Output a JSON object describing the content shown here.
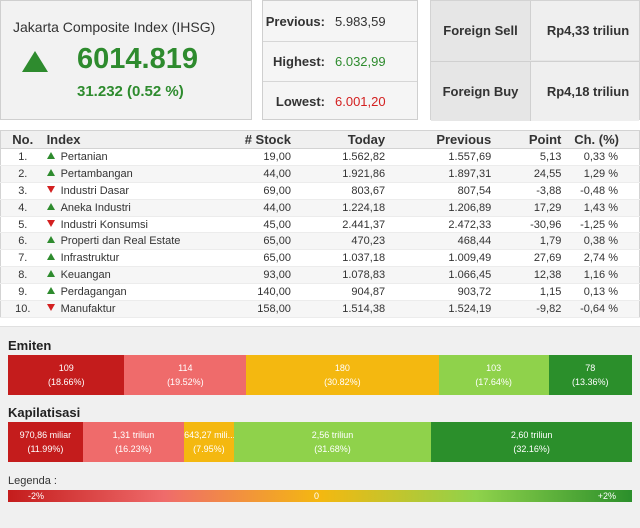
{
  "index": {
    "name": "Jakarta Composite Index (IHSG)",
    "value": "6014.819",
    "change": "31.232 (0.52 %)",
    "trend": "up",
    "color": "#2e8b2e"
  },
  "stats": {
    "previous_label": "Previous:",
    "previous_value": "5.983,59",
    "highest_label": "Highest:",
    "highest_value": "6.032,99",
    "lowest_label": "Lowest:",
    "lowest_value": "6.001,20"
  },
  "foreign": {
    "sell_label": "Foreign Sell",
    "sell_value": "Rp4,33 triliun",
    "buy_label": "Foreign Buy",
    "buy_value": "Rp4,18 triliun"
  },
  "table": {
    "headers": {
      "no": "No.",
      "index": "Index",
      "stock": "# Stock",
      "today": "Today",
      "previous": "Previous",
      "point": "Point",
      "change": "Ch. (%)"
    },
    "rows": [
      {
        "no": "1.",
        "name": "Pertanian",
        "trend": "up",
        "stock": "19,00",
        "today": "1.562,82",
        "previous": "1.557,69",
        "point": "5,13",
        "change": "0,33 %"
      },
      {
        "no": "2.",
        "name": "Pertambangan",
        "trend": "up",
        "stock": "44,00",
        "today": "1.921,86",
        "previous": "1.897,31",
        "point": "24,55",
        "change": "1,29 %"
      },
      {
        "no": "3.",
        "name": "Industri Dasar",
        "trend": "down",
        "stock": "69,00",
        "today": "803,67",
        "previous": "807,54",
        "point": "-3,88",
        "change": "-0,48 %"
      },
      {
        "no": "4.",
        "name": "Aneka Industri",
        "trend": "up",
        "stock": "44,00",
        "today": "1.224,18",
        "previous": "1.206,89",
        "point": "17,29",
        "change": "1,43 %"
      },
      {
        "no": "5.",
        "name": "Industri Konsumsi",
        "trend": "down",
        "stock": "45,00",
        "today": "2.441,37",
        "previous": "2.472,33",
        "point": "-30,96",
        "change": "-1,25 %"
      },
      {
        "no": "6.",
        "name": "Properti dan Real Estate",
        "trend": "up",
        "stock": "65,00",
        "today": "470,23",
        "previous": "468,44",
        "point": "1,79",
        "change": "0,38 %"
      },
      {
        "no": "7.",
        "name": "Infrastruktur",
        "trend": "up",
        "stock": "65,00",
        "today": "1.037,18",
        "previous": "1.009,49",
        "point": "27,69",
        "change": "2,74 %"
      },
      {
        "no": "8.",
        "name": "Keuangan",
        "trend": "up",
        "stock": "93,00",
        "today": "1.078,83",
        "previous": "1.066,45",
        "point": "12,38",
        "change": "1,16 %"
      },
      {
        "no": "9.",
        "name": "Perdagangan",
        "trend": "up",
        "stock": "140,00",
        "today": "904,87",
        "previous": "903,72",
        "point": "1,15",
        "change": "0,13 %"
      },
      {
        "no": "10.",
        "name": "Manufaktur",
        "trend": "down",
        "stock": "158,00",
        "today": "1.514,38",
        "previous": "1.524,19",
        "point": "-9,82",
        "change": "-0,64 %"
      }
    ]
  },
  "emiten": {
    "title": "Emiten",
    "segments": [
      {
        "value": "109",
        "percent": "(18.66%)",
        "share": 18.66,
        "color": "#c41c1c"
      },
      {
        "value": "114",
        "percent": "(19.52%)",
        "share": 19.52,
        "color": "#ef6b6b"
      },
      {
        "value": "180",
        "percent": "(30.82%)",
        "share": 30.82,
        "color": "#f4b810"
      },
      {
        "value": "103",
        "percent": "(17.64%)",
        "share": 17.64,
        "color": "#8fd24b"
      },
      {
        "value": "78",
        "percent": "(13.36%)",
        "share": 13.36,
        "color": "#2b8f2b"
      }
    ]
  },
  "kapitalisasi": {
    "title": "Kapilatisasi",
    "segments": [
      {
        "value": "970,86 miliar",
        "percent": "(11.99%)",
        "share": 11.99,
        "color": "#c41c1c"
      },
      {
        "value": "1,31 triliun",
        "percent": "(16.23%)",
        "share": 16.23,
        "color": "#ef6b6b"
      },
      {
        "value": "643,27 mili...",
        "percent": "(7.95%)",
        "share": 7.95,
        "color": "#f4b810"
      },
      {
        "value": "2,56 triliun",
        "percent": "(31.68%)",
        "share": 31.68,
        "color": "#8fd24b"
      },
      {
        "value": "2,60 triliun",
        "percent": "(32.16%)",
        "share": 32.16,
        "color": "#2b8f2b"
      }
    ]
  },
  "legend": {
    "title": "Legenda :",
    "min": "-2%",
    "mid": "0",
    "max": "+2%"
  }
}
